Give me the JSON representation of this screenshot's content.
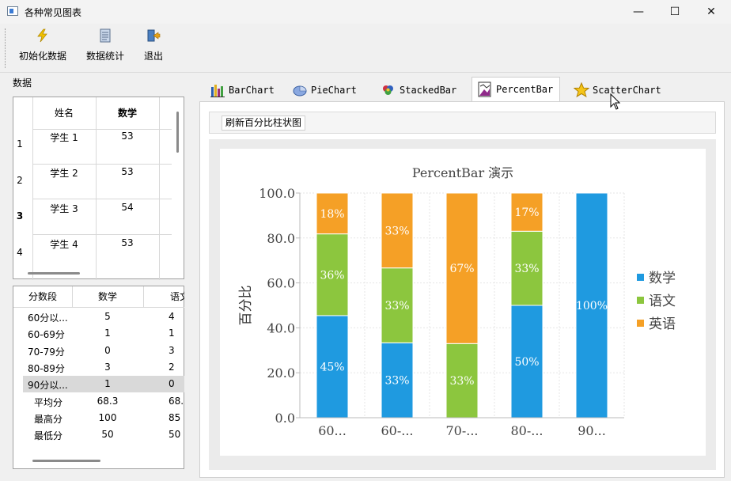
{
  "window": {
    "title": "各种常见图表",
    "minimize_glyph": "—",
    "maximize_glyph": "☐",
    "close_glyph": "✕"
  },
  "toolbar": {
    "init_label": "初始化数据",
    "stats_label": "数据统计",
    "exit_label": "退出"
  },
  "left": {
    "data_label": "数据",
    "scores_table": {
      "headers": [
        "姓名",
        "数学"
      ],
      "rows": [
        {
          "num": "1",
          "name": "学生 1",
          "math": "53"
        },
        {
          "num": "2",
          "name": "学生 2",
          "math": "53"
        },
        {
          "num": "3",
          "name": "学生 3",
          "math": "54"
        },
        {
          "num": "4",
          "name": "学生 4",
          "math": "53"
        }
      ]
    },
    "stats_table": {
      "headers": [
        "分数段",
        "数学",
        "语文"
      ],
      "rows": [
        {
          "seg": "60分以...",
          "math": "5",
          "chinese": "4"
        },
        {
          "seg": "60-69分",
          "math": "1",
          "chinese": "1"
        },
        {
          "seg": "70-79分",
          "math": "0",
          "chinese": "3"
        },
        {
          "seg": "80-89分",
          "math": "3",
          "chinese": "2"
        },
        {
          "seg": "90分以...",
          "math": "1",
          "chinese": "0"
        },
        {
          "seg": "平均分",
          "math": "68.3",
          "chinese": "68."
        },
        {
          "seg": "最高分",
          "math": "100",
          "chinese": "85"
        },
        {
          "seg": "最低分",
          "math": "50",
          "chinese": "50"
        }
      ]
    }
  },
  "tabs": [
    {
      "label": "BarChart",
      "icon": "bar-chart-icon"
    },
    {
      "label": "PieChart",
      "icon": "pie-chart-icon"
    },
    {
      "label": "StackedBar",
      "icon": "stacked-bar-icon"
    },
    {
      "label": "PercentBar",
      "icon": "percent-bar-icon",
      "active": true
    },
    {
      "label": "ScatterChart",
      "icon": "star-icon"
    }
  ],
  "refresh_button": "刷新百分比柱状图",
  "chart_data": {
    "type": "bar",
    "stacked": "percent",
    "title": "PercentBar 演示",
    "ylabel": "百分比",
    "xlabel": "",
    "ylim": [
      0,
      100
    ],
    "yticks": [
      "0.0",
      "20.0",
      "40.0",
      "60.0",
      "80.0",
      "100.0"
    ],
    "categories": [
      "60...",
      "60-...",
      "70-...",
      "80-...",
      "90..."
    ],
    "series": [
      {
        "name": "数学",
        "color": "#1f9ae0",
        "values": [
          45,
          33,
          0,
          50,
          100
        ],
        "labels": [
          "45%",
          "33%",
          "",
          "50%",
          "100%"
        ]
      },
      {
        "name": "语文",
        "color": "#8cc63e",
        "values": [
          36,
          33,
          33,
          33,
          0
        ],
        "labels": [
          "36%",
          "33%",
          "33%",
          "33%",
          ""
        ]
      },
      {
        "name": "英语",
        "color": "#f5a026",
        "values": [
          18,
          33,
          67,
          17,
          0
        ],
        "labels": [
          "18%",
          "33%",
          "67%",
          "17%",
          ""
        ]
      }
    ],
    "legend_position": "right",
    "grid": true
  }
}
